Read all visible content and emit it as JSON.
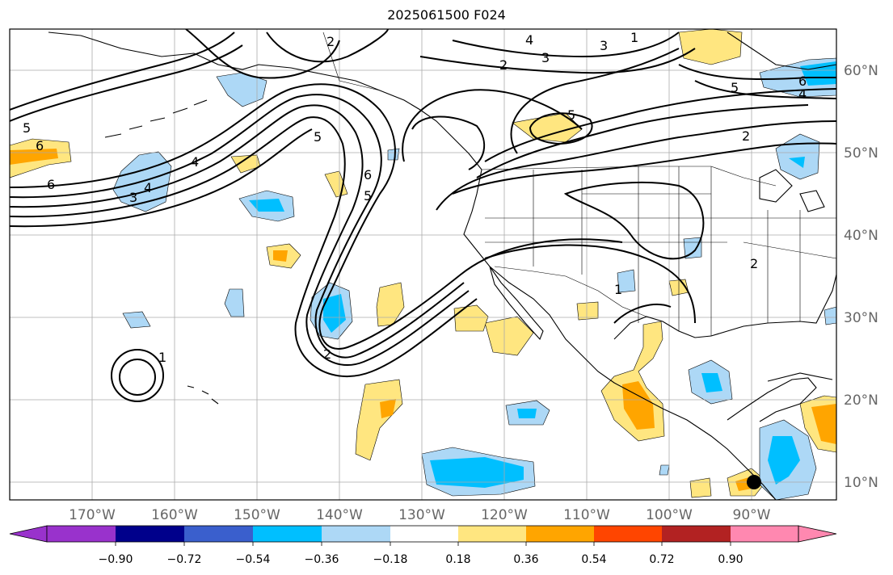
{
  "title": "2025061500 F024",
  "lon_labels": [
    "170°W",
    "160°W",
    "150°W",
    "140°W",
    "130°W",
    "120°W",
    "110°W",
    "100°W",
    "90°W"
  ],
  "lat_labels": [
    "60°N",
    "50°N",
    "40°N",
    "30°N",
    "20°N",
    "10°N"
  ],
  "colorbar": {
    "colors": [
      "#9932cc",
      "#00008b",
      "#3a5fcd",
      "#00bfff",
      "#add8f6",
      "#ffffff",
      "#ffe680",
      "#ffa500",
      "#ff4500",
      "#b22222",
      "#ff88b0"
    ],
    "tick_labels": [
      "−0.90",
      "−0.72",
      "−0.54",
      "−0.36",
      "−0.18",
      "0.18",
      "0.36",
      "0.54",
      "0.72",
      "0.90"
    ]
  },
  "fill_colors": {
    "light_blue": "#add8f6",
    "blue": "#00bfff",
    "yellow": "#ffe680",
    "orange": "#ffa500"
  },
  "contour_labels": [
    "2",
    "4",
    "3",
    "1",
    "2",
    "3",
    "5",
    "6",
    "5",
    "2",
    "5",
    "6",
    "4",
    "6",
    "3",
    "4",
    "5",
    "6",
    "4",
    "5",
    "2",
    "1",
    "1",
    "2"
  ],
  "marker": "black-dot"
}
